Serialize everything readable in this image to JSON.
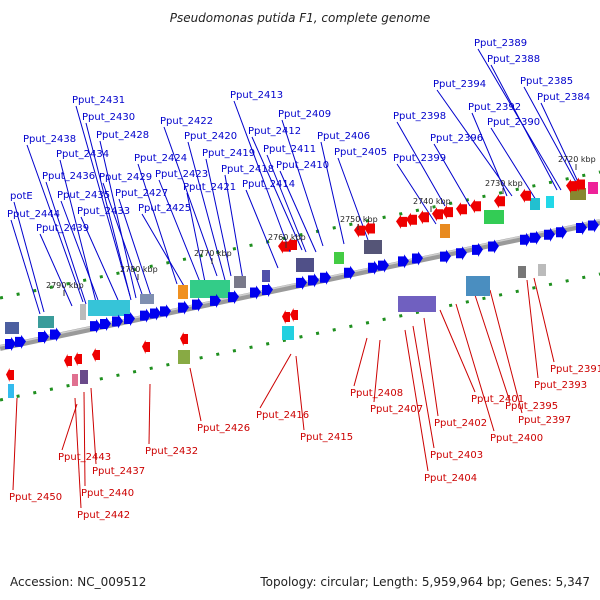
{
  "title": "Pseudomonas putida F1, complete genome",
  "footer": {
    "accession": "Accession: NC_009512",
    "summary": "Topology: circular; Length: 5,959,964 bp; Genes: 5,347"
  },
  "colors": {
    "forward": "#0000ee",
    "reverse": "#ee0000",
    "forward_label": "#0000cc",
    "reverse_label": "#cc0000",
    "axis": "#7a7a7a",
    "tick_mark": "#1f8f1f"
  },
  "ticks": [
    "2790 kbp",
    "2780 kbp",
    "2770 kbp",
    "2760 kbp",
    "2750 kbp",
    "2740 kbp",
    "2730 kbp",
    "2720 kbp"
  ],
  "forward_genes": [
    "Pput_2389",
    "Pput_2388",
    "Pput_2385",
    "Pput_2384",
    "Pput_2394",
    "Pput_2392",
    "Pput_2390",
    "Pput_2398",
    "Pput_2396",
    "Pput_2399",
    "Pput_2413",
    "Pput_2409",
    "Pput_2412",
    "Pput_2406",
    "Pput_2411",
    "Pput_2405",
    "Pput_2410",
    "Pput_2431",
    "Pput_2430",
    "Pput_2422",
    "Pput_2428",
    "Pput_2420",
    "Pput_2438",
    "Pput_2419",
    "Pput_2434",
    "Pput_2424",
    "Pput_2418",
    "Pput_2423",
    "Pput_2414",
    "Pput_2429",
    "Pput_2436",
    "Pput_2421",
    "potE",
    "Pput_2427",
    "Pput_2435",
    "Pput_2425",
    "Pput_2444",
    "Pput_2433",
    "Pput_2439"
  ],
  "reverse_genes": [
    "Pput_2391",
    "Pput_2393",
    "Pput_2408",
    "Pput_2401",
    "Pput_2395",
    "Pput_2407",
    "Pput_2397",
    "Pput_2416",
    "Pput_2402",
    "Pput_2426",
    "Pput_2400",
    "Pput_2415",
    "Pput_2403",
    "Pput_2432",
    "Pput_2443",
    "Pput_2404",
    "Pput_2437",
    "Pput_2440",
    "Pput_2450",
    "Pput_2442"
  ]
}
